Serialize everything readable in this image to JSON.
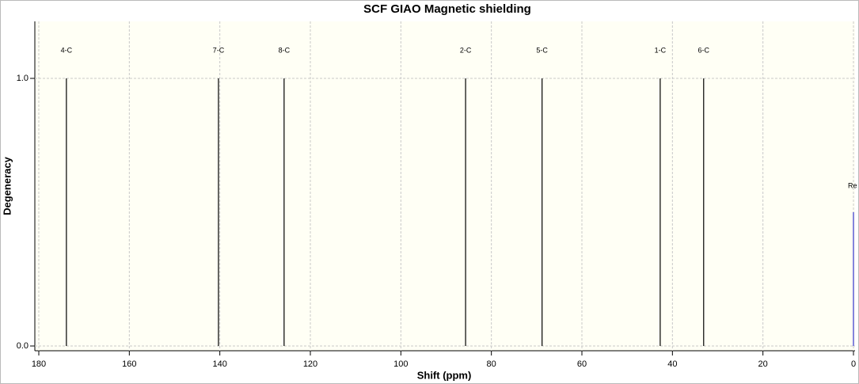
{
  "chart_data": {
    "type": "stick",
    "title": "SCF GIAO Magnetic shielding",
    "x_label": "Shift (ppm)",
    "y_label": "Degeneracy",
    "xlim": [
      180,
      0
    ],
    "xticks": [
      180,
      160,
      140,
      120,
      100,
      80,
      60,
      40,
      20,
      0
    ],
    "ylim": [
      0,
      1.2
    ],
    "yticks": [
      {
        "value": 0,
        "label": "0.0"
      },
      {
        "value": 1,
        "label": "1.0"
      }
    ],
    "grid": true,
    "series": [
      {
        "color": "#000000",
        "x": [
          173.9,
          140.3,
          125.8,
          85.7,
          68.8,
          42.7,
          33.1
        ],
        "values": [
          1,
          1,
          1,
          1,
          1,
          1,
          1
        ],
        "labels": [
          "4-C",
          "7-C",
          "8-C",
          "2-C",
          "5-C",
          "1-C",
          "6-C"
        ]
      },
      {
        "color": "#3333cc",
        "x": [
          0
        ],
        "values": [
          0.5
        ],
        "labels": [
          "Re"
        ]
      }
    ]
  }
}
